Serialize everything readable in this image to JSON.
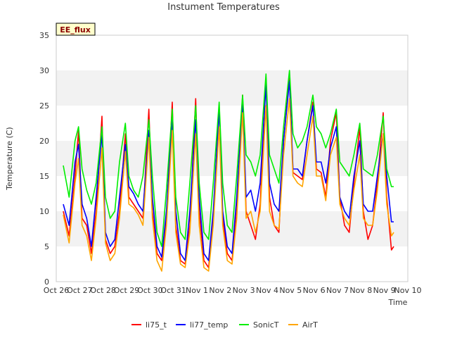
{
  "chart_data": {
    "type": "line",
    "title": "Instument Temperatures",
    "xlabel": "Time",
    "ylabel": "Temperature (C)",
    "badge": "EE_flux",
    "ylim": [
      0,
      35
    ],
    "yticks": [
      0,
      5,
      10,
      15,
      20,
      25,
      30,
      35
    ],
    "xlim": [
      0,
      15
    ],
    "xticks": [
      "Oct 26",
      "Oct 27",
      "Oct 28",
      "Oct 29",
      "Oct 30",
      "Oct 31",
      "Nov 1",
      "Nov 2",
      "Nov 3",
      "Nov 4",
      "Nov 5",
      "Nov 6",
      "Nov 7",
      "Nov 8",
      "Nov 9",
      "Nov 10"
    ],
    "x_unit": "days since Oct 26",
    "grid": "alternating horizontal bands",
    "legend_position": "bottom",
    "series": [
      {
        "name": "li75_t",
        "color": "#ff0000",
        "x": [
          0.3,
          0.55,
          0.8,
          0.95,
          1.1,
          1.3,
          1.5,
          1.7,
          1.95,
          2.1,
          2.3,
          2.5,
          2.7,
          2.95,
          3.1,
          3.3,
          3.5,
          3.7,
          3.95,
          4.1,
          4.3,
          4.5,
          4.7,
          4.95,
          5.1,
          5.3,
          5.5,
          5.7,
          5.95,
          6.1,
          6.3,
          6.5,
          6.7,
          6.95,
          7.1,
          7.3,
          7.5,
          7.7,
          7.95,
          8.1,
          8.3,
          8.5,
          8.7,
          8.95,
          9.1,
          9.3,
          9.5,
          9.7,
          9.95,
          10.1,
          10.3,
          10.5,
          10.7,
          10.95,
          11.1,
          11.3,
          11.5,
          11.7,
          11.95,
          12.1,
          12.3,
          12.5,
          12.7,
          12.95,
          13.1,
          13.3,
          13.5,
          13.7,
          13.95,
          14.1,
          14.3,
          14.4
        ],
        "values": [
          10.0,
          6.5,
          15.0,
          21.5,
          9.0,
          8.0,
          4.0,
          10.0,
          23.5,
          6.0,
          4.0,
          5.0,
          10.0,
          21.0,
          12.0,
          11.0,
          10.0,
          9.0,
          24.5,
          10.0,
          4.0,
          3.0,
          9.0,
          25.5,
          8.0,
          3.0,
          2.5,
          8.0,
          26.0,
          10.0,
          3.0,
          2.0,
          9.0,
          25.0,
          9.0,
          4.0,
          3.0,
          10.0,
          26.5,
          10.0,
          8.0,
          6.0,
          11.0,
          29.0,
          12.0,
          8.0,
          7.0,
          20.0,
          29.0,
          15.5,
          15.0,
          14.5,
          20.0,
          25.5,
          16.0,
          15.5,
          12.0,
          20.0,
          24.0,
          12.0,
          8.0,
          7.0,
          14.0,
          22.0,
          10.0,
          6.0,
          8.0,
          14.0,
          24.0,
          12.0,
          4.5,
          5.0
        ]
      },
      {
        "name": "li77_temp",
        "color": "#0000ff",
        "x": [
          0.3,
          0.55,
          0.8,
          0.95,
          1.1,
          1.3,
          1.5,
          1.7,
          1.95,
          2.1,
          2.3,
          2.5,
          2.7,
          2.95,
          3.1,
          3.3,
          3.5,
          3.7,
          3.95,
          4.1,
          4.3,
          4.5,
          4.7,
          4.95,
          5.1,
          5.3,
          5.5,
          5.7,
          5.95,
          6.1,
          6.3,
          6.5,
          6.7,
          6.95,
          7.1,
          7.3,
          7.5,
          7.7,
          7.95,
          8.1,
          8.3,
          8.5,
          8.7,
          8.95,
          9.1,
          9.3,
          9.5,
          9.7,
          9.95,
          10.1,
          10.3,
          10.5,
          10.7,
          10.95,
          11.1,
          11.3,
          11.5,
          11.7,
          11.95,
          12.1,
          12.3,
          12.5,
          12.7,
          12.95,
          13.1,
          13.3,
          13.5,
          13.7,
          13.95,
          14.1,
          14.3,
          14.4
        ],
        "values": [
          11.0,
          8.0,
          17.0,
          19.5,
          11.0,
          9.0,
          5.0,
          12.0,
          21.0,
          7.0,
          5.0,
          6.0,
          12.0,
          19.5,
          13.5,
          12.5,
          11.0,
          10.0,
          21.5,
          12.0,
          5.0,
          3.5,
          10.0,
          23.0,
          10.0,
          4.0,
          3.0,
          10.0,
          23.0,
          12.0,
          4.0,
          3.0,
          10.0,
          24.5,
          10.0,
          5.0,
          4.0,
          12.0,
          25.5,
          12.0,
          13.0,
          10.0,
          14.0,
          28.0,
          14.0,
          11.0,
          10.0,
          20.0,
          28.5,
          16.0,
          16.0,
          15.0,
          20.0,
          25.0,
          17.0,
          17.0,
          14.0,
          19.0,
          22.0,
          12.0,
          10.0,
          9.0,
          15.0,
          20.0,
          11.0,
          10.0,
          10.0,
          15.0,
          21.0,
          15.0,
          8.5,
          8.5
        ]
      },
      {
        "name": "SonicT",
        "color": "#00ee00",
        "x": [
          0.3,
          0.55,
          0.8,
          0.95,
          1.1,
          1.3,
          1.5,
          1.7,
          1.95,
          2.1,
          2.3,
          2.5,
          2.7,
          2.95,
          3.1,
          3.3,
          3.5,
          3.7,
          3.95,
          4.1,
          4.3,
          4.5,
          4.7,
          4.95,
          5.1,
          5.3,
          5.5,
          5.7,
          5.95,
          6.1,
          6.3,
          6.5,
          6.7,
          6.95,
          7.1,
          7.3,
          7.5,
          7.7,
          7.95,
          8.1,
          8.3,
          8.5,
          8.7,
          8.95,
          9.1,
          9.3,
          9.5,
          9.7,
          9.95,
          10.1,
          10.3,
          10.5,
          10.7,
          10.95,
          11.1,
          11.3,
          11.5,
          11.7,
          11.95,
          12.1,
          12.3,
          12.5,
          12.7,
          12.95,
          13.1,
          13.3,
          13.5,
          13.7,
          13.95,
          14.1,
          14.3,
          14.4
        ],
        "values": [
          16.5,
          12.0,
          20.0,
          22.0,
          16.0,
          13.0,
          11.0,
          14.0,
          22.0,
          12.0,
          9.0,
          10.0,
          17.0,
          22.5,
          15.0,
          13.0,
          12.0,
          15.0,
          23.0,
          15.0,
          7.0,
          5.0,
          13.0,
          24.5,
          12.0,
          7.0,
          6.0,
          14.0,
          25.0,
          14.0,
          7.0,
          6.0,
          14.0,
          25.5,
          14.0,
          8.0,
          7.0,
          15.0,
          26.5,
          18.0,
          17.0,
          15.0,
          18.0,
          29.5,
          18.0,
          16.0,
          14.0,
          22.0,
          30.0,
          21.0,
          19.0,
          20.0,
          22.0,
          26.5,
          22.0,
          21.0,
          19.0,
          21.0,
          24.5,
          17.0,
          16.0,
          15.0,
          18.0,
          22.5,
          16.0,
          15.5,
          15.0,
          18.0,
          23.5,
          16.0,
          13.5,
          13.5
        ]
      },
      {
        "name": "AirT",
        "color": "#ffa500",
        "x": [
          0.3,
          0.55,
          0.8,
          0.95,
          1.1,
          1.3,
          1.5,
          1.7,
          1.95,
          2.1,
          2.3,
          2.5,
          2.7,
          2.95,
          3.1,
          3.3,
          3.5,
          3.7,
          3.95,
          4.1,
          4.3,
          4.5,
          4.7,
          4.95,
          5.1,
          5.3,
          5.5,
          5.7,
          5.95,
          6.1,
          6.3,
          6.5,
          6.7,
          6.95,
          7.1,
          7.3,
          7.5,
          7.7,
          7.95,
          8.1,
          8.3,
          8.5,
          8.7,
          8.95,
          9.1,
          9.3,
          9.5,
          9.7,
          9.95,
          10.1,
          10.3,
          10.5,
          10.7,
          10.95,
          11.1,
          11.3,
          11.5,
          11.7,
          11.95,
          12.1,
          12.3,
          12.5,
          12.7,
          12.95,
          13.1,
          13.3,
          13.5,
          13.7,
          13.95,
          14.1,
          14.3,
          14.4
        ],
        "values": [
          9.5,
          5.5,
          14.0,
          17.5,
          8.0,
          6.5,
          3.0,
          9.0,
          19.0,
          5.5,
          3.0,
          4.0,
          9.0,
          18.5,
          11.0,
          10.5,
          9.5,
          8.0,
          20.5,
          9.0,
          3.0,
          1.5,
          8.0,
          21.5,
          7.0,
          2.5,
          2.0,
          7.0,
          21.0,
          8.0,
          2.0,
          1.5,
          8.0,
          22.0,
          8.0,
          3.0,
          2.5,
          9.0,
          24.0,
          9.0,
          10.0,
          7.0,
          10.0,
          25.0,
          10.0,
          8.0,
          7.5,
          18.0,
          26.0,
          15.0,
          14.0,
          13.5,
          18.0,
          23.5,
          15.0,
          15.0,
          11.5,
          18.0,
          20.5,
          11.0,
          9.0,
          8.0,
          13.0,
          18.0,
          9.0,
          8.0,
          8.0,
          13.0,
          21.0,
          11.0,
          6.5,
          7.0
        ]
      }
    ]
  }
}
